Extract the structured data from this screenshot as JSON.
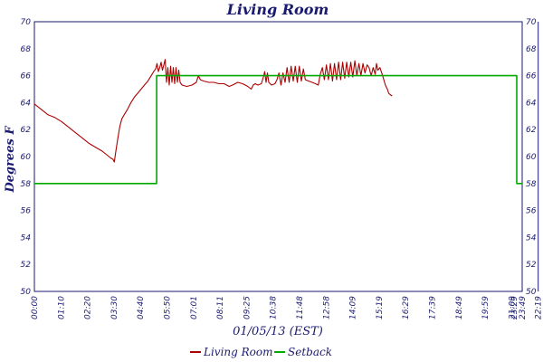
{
  "chart_data": {
    "type": "line",
    "title": "Living Room",
    "xlabel": "01/05/13 (EST)",
    "ylabel": "Degrees F",
    "x_ticks": [
      "00:00",
      "01:10",
      "02:20",
      "03:30",
      "04:40",
      "05:50",
      "07:01",
      "08:11",
      "09:25",
      "10:38",
      "11:48",
      "12:58",
      "14:09",
      "15:19",
      "16:29",
      "17:39",
      "18:49",
      "19:59",
      "21:09",
      "22:19",
      "23:29",
      "23:49"
    ],
    "x_range_minutes": [
      0,
      1440
    ],
    "ylim": [
      50,
      70
    ],
    "y_ticks": [
      50,
      52,
      54,
      56,
      58,
      60,
      62,
      64,
      66,
      68,
      70
    ],
    "grid": true,
    "legend_position": "bottom",
    "series": [
      {
        "name": "Living Room",
        "color": "#aa0000",
        "points": [
          [
            0,
            63.9
          ],
          [
            20,
            63.5
          ],
          [
            40,
            63.1
          ],
          [
            60,
            62.9
          ],
          [
            80,
            62.6
          ],
          [
            100,
            62.2
          ],
          [
            120,
            61.8
          ],
          [
            140,
            61.4
          ],
          [
            160,
            61.0
          ],
          [
            180,
            60.7
          ],
          [
            200,
            60.4
          ],
          [
            215,
            60.1
          ],
          [
            225,
            59.9
          ],
          [
            232,
            59.8
          ],
          [
            236,
            59.6
          ],
          [
            240,
            60.3
          ],
          [
            246,
            61.3
          ],
          [
            252,
            62.2
          ],
          [
            258,
            62.8
          ],
          [
            265,
            63.1
          ],
          [
            275,
            63.5
          ],
          [
            285,
            64.0
          ],
          [
            295,
            64.4
          ],
          [
            305,
            64.7
          ],
          [
            315,
            65.0
          ],
          [
            325,
            65.3
          ],
          [
            335,
            65.6
          ],
          [
            345,
            66.0
          ],
          [
            352,
            66.3
          ],
          [
            358,
            66.5
          ],
          [
            362,
            66.9
          ],
          [
            366,
            66.3
          ],
          [
            370,
            66.6
          ],
          [
            374,
            67.0
          ],
          [
            378,
            66.4
          ],
          [
            382,
            66.8
          ],
          [
            386,
            67.2
          ],
          [
            390,
            65.5
          ],
          [
            394,
            66.6
          ],
          [
            398,
            65.3
          ],
          [
            402,
            66.7
          ],
          [
            406,
            65.5
          ],
          [
            410,
            66.6
          ],
          [
            414,
            65.4
          ],
          [
            418,
            66.6
          ],
          [
            422,
            65.5
          ],
          [
            426,
            66.4
          ],
          [
            430,
            65.5
          ],
          [
            436,
            65.3
          ],
          [
            450,
            65.2
          ],
          [
            465,
            65.3
          ],
          [
            478,
            65.5
          ],
          [
            484,
            66.0
          ],
          [
            490,
            65.7
          ],
          [
            500,
            65.6
          ],
          [
            515,
            65.5
          ],
          [
            530,
            65.5
          ],
          [
            545,
            65.4
          ],
          [
            560,
            65.4
          ],
          [
            575,
            65.2
          ],
          [
            585,
            65.3
          ],
          [
            600,
            65.5
          ],
          [
            615,
            65.4
          ],
          [
            630,
            65.2
          ],
          [
            640,
            65.0
          ],
          [
            646,
            65.3
          ],
          [
            652,
            65.4
          ],
          [
            660,
            65.3
          ],
          [
            670,
            65.4
          ],
          [
            676,
            65.9
          ],
          [
            680,
            66.3
          ],
          [
            684,
            65.5
          ],
          [
            688,
            66.2
          ],
          [
            692,
            65.5
          ],
          [
            700,
            65.3
          ],
          [
            710,
            65.4
          ],
          [
            716,
            65.7
          ],
          [
            722,
            66.2
          ],
          [
            728,
            65.3
          ],
          [
            734,
            66.2
          ],
          [
            740,
            65.5
          ],
          [
            746,
            66.6
          ],
          [
            752,
            65.5
          ],
          [
            758,
            66.7
          ],
          [
            764,
            65.6
          ],
          [
            770,
            66.7
          ],
          [
            776,
            65.5
          ],
          [
            782,
            66.7
          ],
          [
            788,
            65.6
          ],
          [
            794,
            66.5
          ],
          [
            800,
            65.7
          ],
          [
            810,
            65.6
          ],
          [
            820,
            65.5
          ],
          [
            830,
            65.4
          ],
          [
            838,
            65.3
          ],
          [
            844,
            66.1
          ],
          [
            850,
            66.6
          ],
          [
            856,
            65.7
          ],
          [
            862,
            66.8
          ],
          [
            868,
            65.7
          ],
          [
            874,
            66.9
          ],
          [
            880,
            65.6
          ],
          [
            886,
            66.9
          ],
          [
            892,
            65.7
          ],
          [
            898,
            67.0
          ],
          [
            904,
            65.7
          ],
          [
            910,
            67.0
          ],
          [
            916,
            65.8
          ],
          [
            922,
            67.0
          ],
          [
            928,
            65.9
          ],
          [
            934,
            67.0
          ],
          [
            940,
            65.9
          ],
          [
            946,
            67.1
          ],
          [
            952,
            66.0
          ],
          [
            958,
            66.9
          ],
          [
            964,
            66.0
          ],
          [
            970,
            66.9
          ],
          [
            976,
            66.2
          ],
          [
            982,
            66.8
          ],
          [
            988,
            66.6
          ],
          [
            994,
            66.0
          ],
          [
            998,
            66.4
          ],
          [
            1000,
            66.6
          ],
          [
            1006,
            66.1
          ],
          [
            1010,
            66.9
          ],
          [
            1014,
            66.4
          ],
          [
            1020,
            66.6
          ],
          [
            1028,
            66.0
          ],
          [
            1036,
            65.3
          ],
          [
            1042,
            65.0
          ],
          [
            1046,
            64.7
          ],
          [
            1050,
            64.6
          ],
          [
            1056,
            64.5
          ]
        ]
      },
      {
        "name": "Setback",
        "color": "#00aa00",
        "points": [
          [
            0,
            58
          ],
          [
            361,
            58
          ],
          [
            361,
            66
          ],
          [
            1424,
            66
          ],
          [
            1424,
            58
          ],
          [
            1440,
            58
          ]
        ]
      }
    ]
  }
}
